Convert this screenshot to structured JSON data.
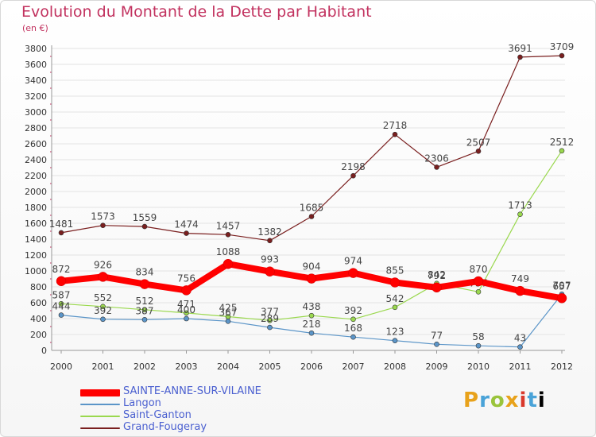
{
  "header": {
    "title": "Evolution du Montant de la Dette par Habitant",
    "subtitle": "(en €)"
  },
  "logo": {
    "letters": [
      "P",
      "r",
      "o",
      "x",
      "i",
      "t",
      "i"
    ]
  },
  "chart_data": {
    "type": "line",
    "title": "Evolution du Montant de la Dette par Habitant",
    "subtitle": "(en €)",
    "xlabel": "",
    "ylabel": "",
    "categories": [
      "2000",
      "2001",
      "2002",
      "2003",
      "2004",
      "2005",
      "2006",
      "2007",
      "2008",
      "2009",
      "2010",
      "2011",
      "2012"
    ],
    "y_ticks": [
      "0",
      "200",
      "400",
      "600",
      "800",
      "1000",
      "1200",
      "1400",
      "1600",
      "1800",
      "2000",
      "2200",
      "2400",
      "2600",
      "2800",
      "3000",
      "3200",
      "3400",
      "3600",
      "3800"
    ],
    "ylim": [
      0,
      3800
    ],
    "grid": true,
    "legend_position": "bottom-left",
    "series": [
      {
        "name": "Grand-Fougeray",
        "color": "#7a1f1f",
        "width": 1.2,
        "values": [
          1481,
          1573,
          1559,
          1474,
          1457,
          1382,
          1685,
          2198,
          2718,
          2306,
          2507,
          3691,
          3709
        ]
      },
      {
        "name": "Saint-Ganton",
        "color": "#9ad84e",
        "width": 1.2,
        "values": [
          587,
          552,
          512,
          471,
          425,
          377,
          438,
          392,
          542,
          842,
          737,
          1713,
          2512
        ]
      },
      {
        "name": "Langon",
        "color": "#5b95c8",
        "width": 1.2,
        "values": [
          444,
          392,
          387,
          400,
          367,
          289,
          218,
          168,
          123,
          77,
          58,
          43,
          707
        ]
      },
      {
        "name": "SAINTE-ANNE-SUR-VILAINE",
        "color": "#ff0000",
        "width": 8,
        "values": [
          872,
          926,
          834,
          756,
          1088,
          993,
          904,
          974,
          855,
          792,
          870,
          749,
          657
        ]
      }
    ]
  }
}
